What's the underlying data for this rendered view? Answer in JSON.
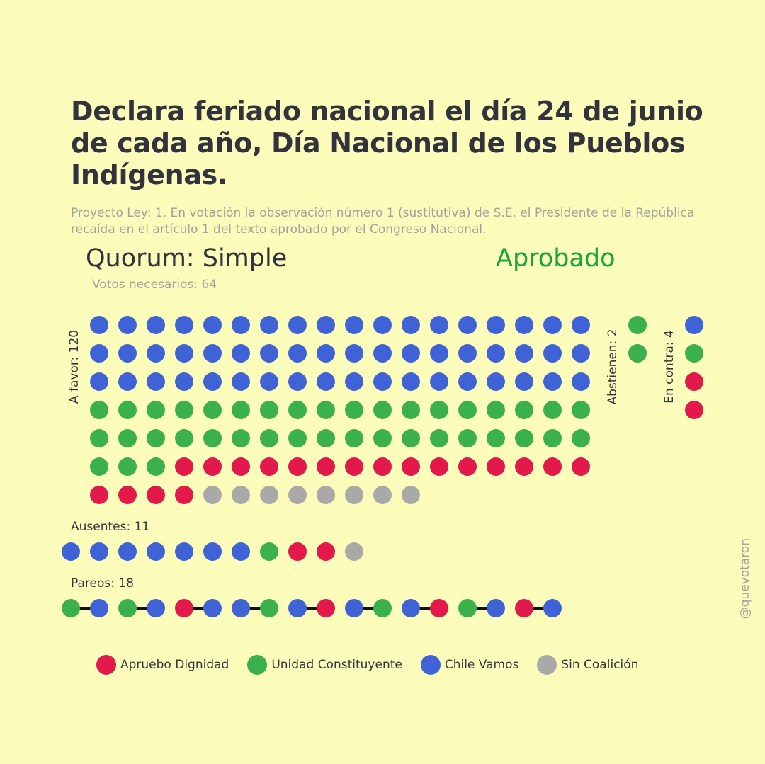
{
  "header": {
    "title": "Declara feriado nacional el día 24 de junio de cada año, Día Nacional de los Pueblos Indígenas.",
    "subtitle": "Proyecto Ley: 1. En votación la observación número 1 (sustitutiva) de S.E. el Presidente de la República recaída en el artículo 1 del texto aprobado por el Congreso Nacional.",
    "quorum": "Quorum: Simple",
    "status": "Aprobado",
    "needed": "Votos necesarios: 64"
  },
  "colors": {
    "AD": "#e3194b",
    "UC": "#3bb14d",
    "CV": "#3f63d6",
    "SC": "#a9a9a9",
    "status": "#1aa33a",
    "background": "#fdfdbb"
  },
  "chart_data": {
    "type": "dot",
    "groups": [
      {
        "key": "favor",
        "label": "A favor: 120",
        "counts": {
          "CV": 54,
          "UC": 39,
          "AD": 19,
          "SC": 8
        }
      },
      {
        "key": "abstain",
        "label": "Abstienen: 2",
        "counts": {
          "UC": 2
        }
      },
      {
        "key": "against",
        "label": "En contra: 4",
        "counts": {
          "CV": 1,
          "UC": 1,
          "AD": 2
        }
      },
      {
        "key": "absent",
        "label": "Ausentes: 11",
        "counts": {
          "CV": 7,
          "UC": 1,
          "AD": 2,
          "SC": 1
        }
      },
      {
        "key": "paired",
        "label": "Pareos: 18",
        "sequence": [
          "UC",
          "CV",
          "UC",
          "CV",
          "AD",
          "CV",
          "CV",
          "UC",
          "CV",
          "AD",
          "CV",
          "UC",
          "CV",
          "AD",
          "UC",
          "CV",
          "AD",
          "CV"
        ]
      }
    ],
    "legend": [
      {
        "key": "AD",
        "label": "Apruebo Dignidad"
      },
      {
        "key": "UC",
        "label": "Unidad Constituyente"
      },
      {
        "key": "CV",
        "label": "Chile Vamos"
      },
      {
        "key": "SC",
        "label": "Sin Coalición"
      }
    ]
  },
  "credit": "@quevotaron"
}
